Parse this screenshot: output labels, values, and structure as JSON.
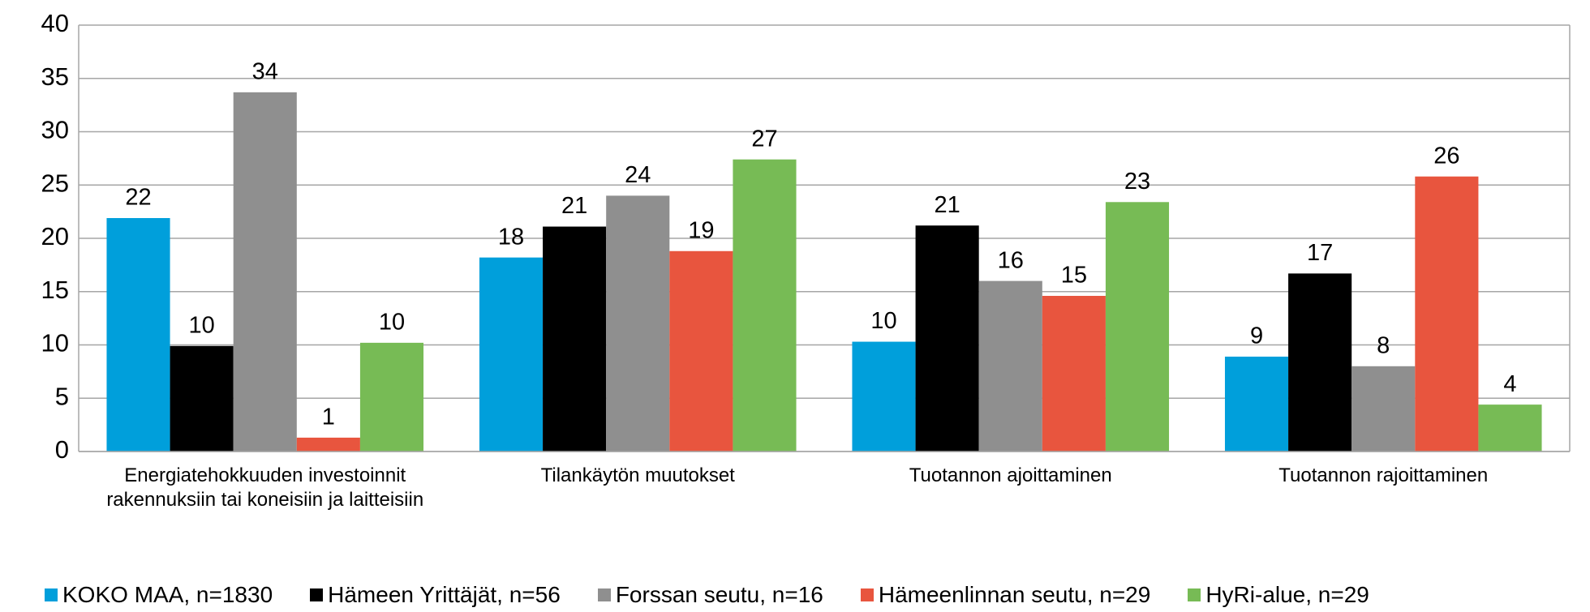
{
  "chart_data": {
    "type": "bar",
    "categories": [
      "Energiatehokkuuden investoinnit rakennuksiin tai koneisiin ja laitteisiin",
      "Tilankäytön muutokset",
      "Tuotannon ajoittaminen",
      "Tuotannon rajoittaminen"
    ],
    "series": [
      {
        "name": "KOKO MAA, n=1830",
        "color": "#009fdb",
        "values": [
          21.9,
          18.2,
          10.3,
          8.9
        ],
        "value_labels": [
          "22",
          "18",
          "10",
          "9"
        ]
      },
      {
        "name": "Hämeen Yrittäjät, n=56",
        "color": "#000000",
        "values": [
          9.9,
          21.1,
          21.2,
          16.7
        ],
        "value_labels": [
          "10",
          "21",
          "21",
          "17"
        ]
      },
      {
        "name": "Forssan seutu, n=16",
        "color": "#8f8f8f",
        "values": [
          33.7,
          24.0,
          16.0,
          8.0
        ],
        "value_labels": [
          "34",
          "24",
          "16",
          "8"
        ]
      },
      {
        "name": "Hämeenlinnan seutu, n=29",
        "color": "#e8553e",
        "values": [
          1.3,
          18.8,
          14.6,
          25.8
        ],
        "value_labels": [
          "1",
          "19",
          "15",
          "26"
        ]
      },
      {
        "name": "HyRi-alue, n=29",
        "color": "#77bb55",
        "values": [
          10.2,
          27.4,
          23.4,
          4.4
        ],
        "value_labels": [
          "10",
          "27",
          "23",
          "4"
        ]
      }
    ],
    "ylim": [
      0,
      40
    ],
    "yticks": [
      0,
      5,
      10,
      15,
      20,
      25,
      30,
      35,
      40
    ],
    "grid": true,
    "legend": "bottom"
  }
}
